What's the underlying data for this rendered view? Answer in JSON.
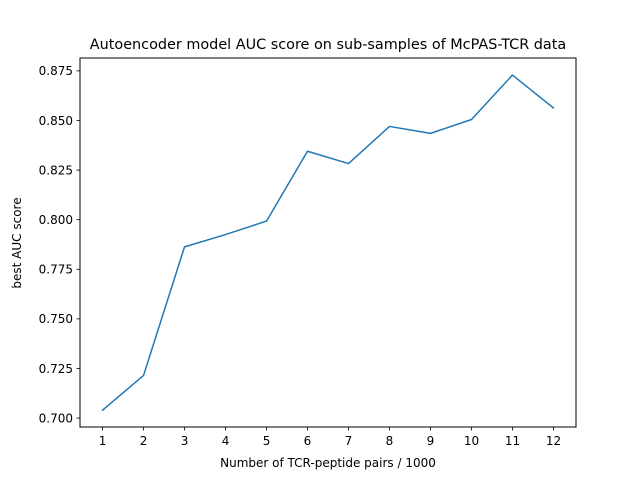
{
  "chart_data": {
    "type": "line",
    "title": "Autoencoder model AUC score on sub-samples of McPAS-TCR data",
    "xlabel": "Number of TCR-peptide pairs / 1000",
    "ylabel": "best AUC score",
    "x": [
      1,
      2,
      3,
      4,
      5,
      6,
      7,
      8,
      9,
      10,
      11,
      12
    ],
    "xticks": [
      "1",
      "2",
      "3",
      "4",
      "5",
      "6",
      "7",
      "8",
      "9",
      "10",
      "11",
      "12"
    ],
    "yticks": [
      0.7,
      0.725,
      0.75,
      0.775,
      0.8,
      0.825,
      0.85,
      0.875
    ],
    "ytick_labels": [
      "0.700",
      "0.725",
      "0.750",
      "0.775",
      "0.800",
      "0.825",
      "0.850",
      "0.875"
    ],
    "xlim": [
      0.45,
      12.55
    ],
    "ylim": [
      0.6955,
      0.8815
    ],
    "grid": false,
    "legend": "none",
    "series": [
      {
        "color": "#1f77b4",
        "values": [
          0.704,
          0.7215,
          0.7863,
          0.7925,
          0.7993,
          0.8345,
          0.8283,
          0.847,
          0.8435,
          0.8505,
          0.8729,
          0.8563
        ]
      }
    ]
  }
}
